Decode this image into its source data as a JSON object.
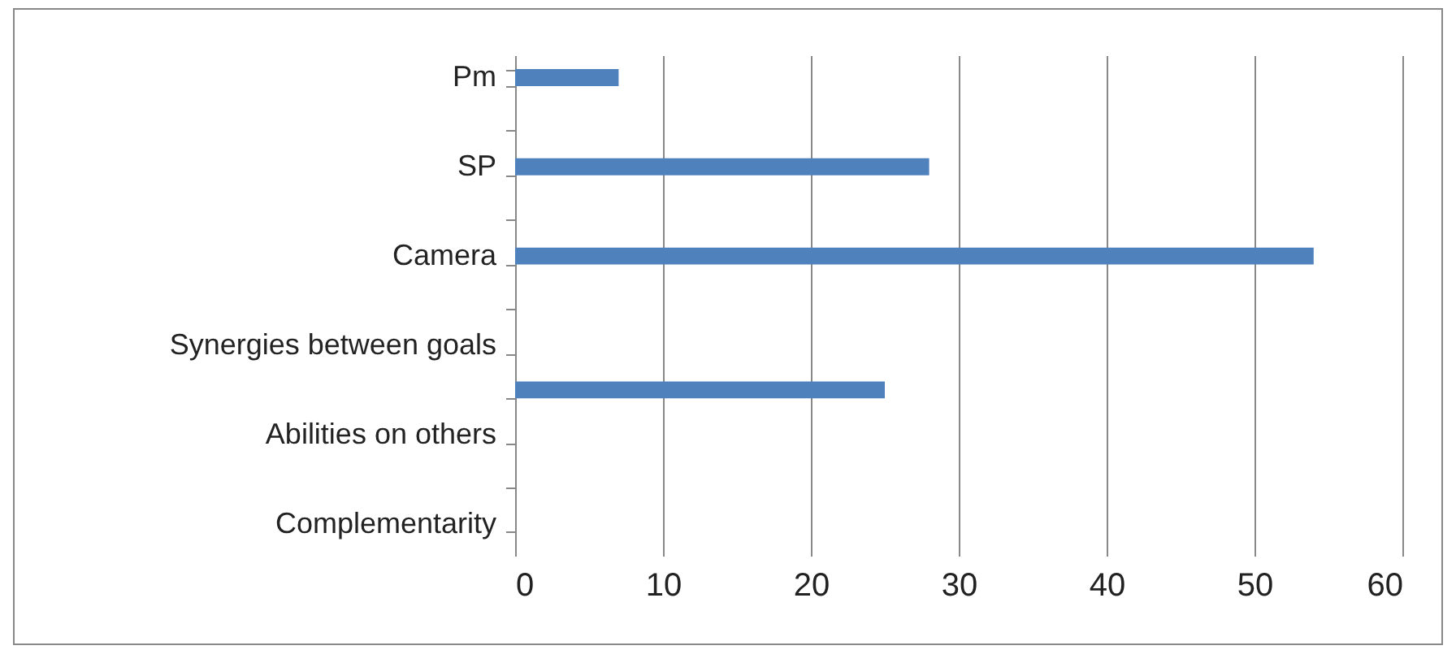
{
  "chart_data": {
    "type": "bar",
    "orientation": "horizontal",
    "categories": [
      "Pm",
      null,
      "SP",
      null,
      "Camera",
      null,
      "Synergies between goals",
      null,
      "Abilities on others",
      null,
      "Complementarity"
    ],
    "values": [
      7,
      null,
      28,
      null,
      54,
      null,
      null,
      25,
      null,
      null,
      null
    ],
    "color": "#4f81bd",
    "xlim": [
      0,
      60
    ],
    "xticks": [
      0,
      10,
      20,
      30,
      40,
      50,
      60
    ],
    "grid": "x"
  }
}
